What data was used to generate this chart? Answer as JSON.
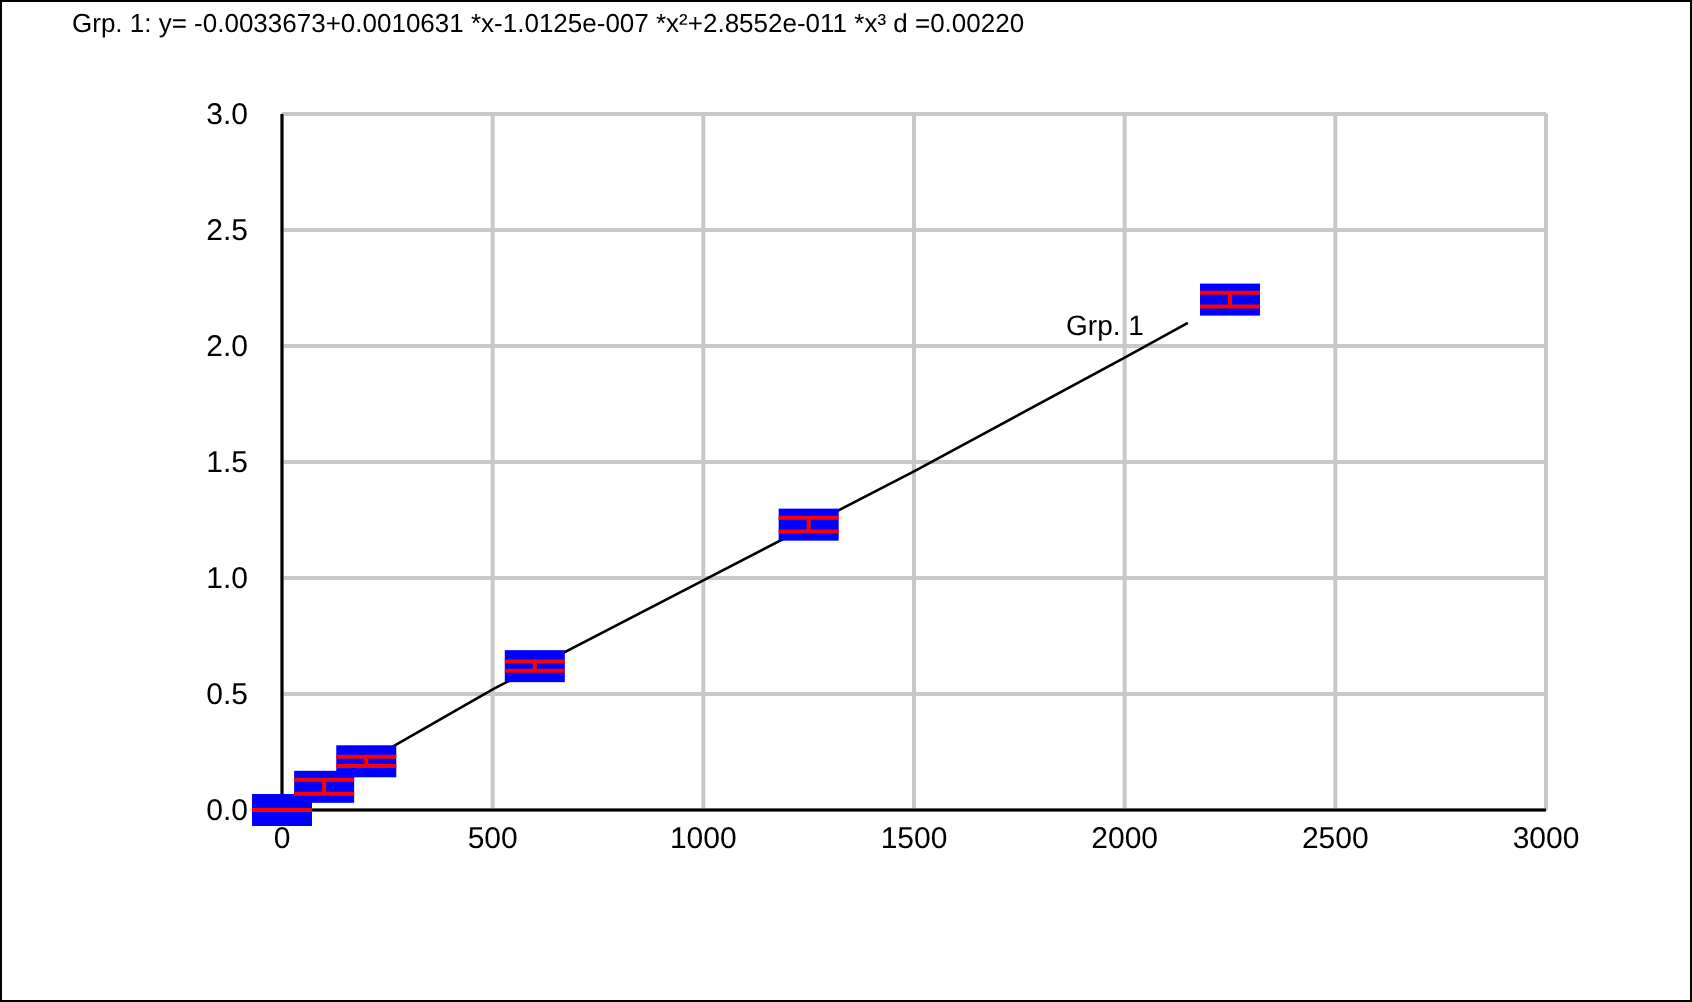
{
  "chart_data": {
    "type": "scatter",
    "title": "Grp. 1: y= -0.0033673+0.0010631 *x-1.0125e-007 *x²+2.8552e-011 *x³   d =0.00220",
    "xlim": [
      0,
      3000
    ],
    "xticks": [
      0,
      500,
      1000,
      1500,
      2000,
      2500,
      3000
    ],
    "ylim": [
      0,
      3
    ],
    "yticks": [
      {
        "value": 0,
        "label": "0.0"
      },
      {
        "value": 0.5,
        "label": "0.5"
      },
      {
        "value": 1,
        "label": "1.0"
      },
      {
        "value": 1.5,
        "label": "1.5"
      },
      {
        "value": 2,
        "label": "2.0"
      },
      {
        "value": 2.5,
        "label": "2.5"
      },
      {
        "value": 3,
        "label": "3.0"
      }
    ],
    "grid": true,
    "series": [
      {
        "marker": "square",
        "color": "#0000ff",
        "x": [
          0,
          100,
          200,
          600,
          1250,
          2250
        ],
        "values": [
          0,
          0.1,
          0.21,
          0.62,
          1.23,
          2.2
        ],
        "errors": [
          null,
          0.03,
          0.02,
          0.02,
          0.03,
          0.03
        ]
      },
      {
        "type": "line",
        "name": "Grp. 1",
        "color": "#000000",
        "line_style": "solid",
        "x": [
          0,
          500,
          1000,
          1500,
          2000,
          2150
        ],
        "values": [
          0,
          0.52,
          0.99,
          1.46,
          1.95,
          2.1
        ]
      }
    ]
  }
}
